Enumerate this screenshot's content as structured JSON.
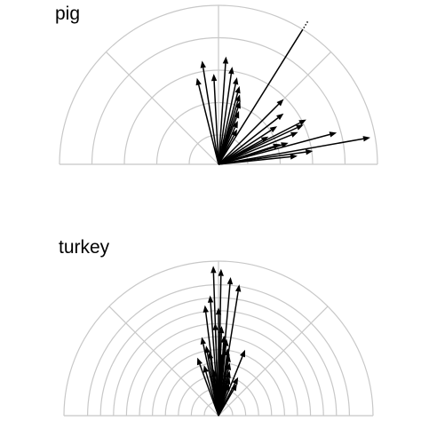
{
  "chart_data": [
    {
      "type": "polar-vector",
      "title": "pig",
      "rings": 5,
      "r_max": 1.0,
      "theta_range": [
        0,
        180
      ],
      "grid": true,
      "vectors": [
        {
          "angle": 58,
          "length": 1.0,
          "dashed": true
        },
        {
          "angle": 104,
          "length": 0.56
        },
        {
          "angle": 99,
          "length": 0.66
        },
        {
          "angle": 93,
          "length": 0.57
        },
        {
          "angle": 86,
          "length": 0.68
        },
        {
          "angle": 82,
          "length": 0.62
        },
        {
          "angle": 78,
          "length": 0.56
        },
        {
          "angle": 75,
          "length": 0.51
        },
        {
          "angle": 73,
          "length": 0.46
        },
        {
          "angle": 71,
          "length": 0.42
        },
        {
          "angle": 69,
          "length": 0.36
        },
        {
          "angle": 66,
          "length": 0.3
        },
        {
          "angle": 62,
          "length": 0.25
        },
        {
          "angle": 45,
          "length": 0.58
        },
        {
          "angle": 38,
          "length": 0.52
        },
        {
          "angle": 33,
          "length": 0.44
        },
        {
          "angle": 29,
          "length": 0.36
        },
        {
          "angle": 27,
          "length": 0.62
        },
        {
          "angle": 25,
          "length": 0.59
        },
        {
          "angle": 22,
          "length": 0.54
        },
        {
          "angle": 18,
          "length": 0.41
        },
        {
          "angle": 17,
          "length": 0.46
        },
        {
          "angle": 15,
          "length": 0.77
        },
        {
          "angle": 10,
          "length": 0.97
        },
        {
          "angle": 8,
          "length": 0.6
        },
        {
          "angle": 6,
          "length": 0.5
        }
      ]
    },
    {
      "type": "polar-vector",
      "title": "turkey",
      "rings": 11,
      "r_max": 1.0,
      "theta_range": [
        0,
        180
      ],
      "grid": true,
      "vectors": [
        {
          "angle": 92,
          "length": 0.97
        },
        {
          "angle": 89,
          "length": 0.95
        },
        {
          "angle": 85,
          "length": 0.9
        },
        {
          "angle": 81,
          "length": 0.86
        },
        {
          "angle": 97,
          "length": 0.72
        },
        {
          "angle": 94,
          "length": 0.78
        },
        {
          "angle": 92,
          "length": 0.6
        },
        {
          "angle": 90,
          "length": 0.7
        },
        {
          "angle": 88,
          "length": 0.58
        },
        {
          "angle": 86,
          "length": 0.52
        },
        {
          "angle": 84,
          "length": 0.5
        },
        {
          "angle": 82,
          "length": 0.44
        },
        {
          "angle": 80,
          "length": 0.4
        },
        {
          "angle": 78,
          "length": 0.35
        },
        {
          "angle": 76,
          "length": 0.3
        },
        {
          "angle": 74,
          "length": 0.26
        },
        {
          "angle": 72,
          "length": 0.22
        },
        {
          "angle": 102,
          "length": 0.52
        },
        {
          "angle": 100,
          "length": 0.46
        },
        {
          "angle": 110,
          "length": 0.4
        },
        {
          "angle": 106,
          "length": 0.34
        },
        {
          "angle": 98,
          "length": 0.42
        },
        {
          "angle": 68,
          "length": 0.46
        },
        {
          "angle": 63,
          "length": 0.28
        },
        {
          "angle": 60,
          "length": 0.24
        },
        {
          "angle": 96,
          "length": 0.3
        },
        {
          "angle": 87,
          "length": 0.4
        }
      ]
    }
  ]
}
